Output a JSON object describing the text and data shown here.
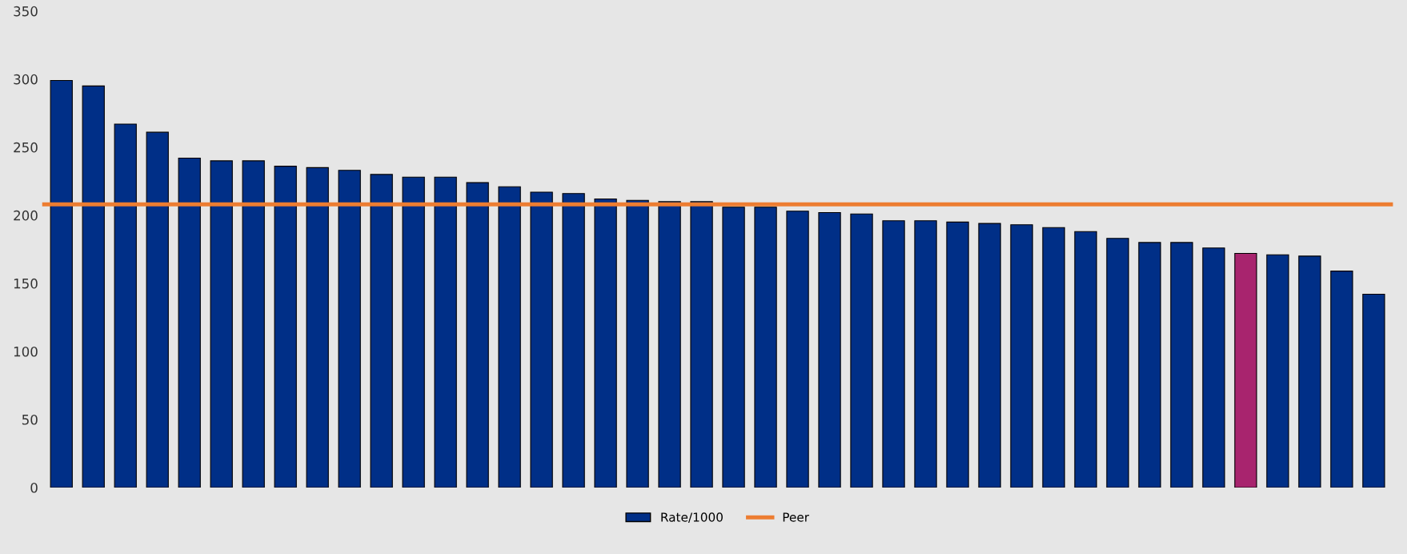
{
  "chart_data": {
    "type": "bar",
    "categories": [
      null,
      null,
      null,
      null,
      null,
      null,
      null,
      null,
      null,
      null,
      null,
      null,
      null,
      null,
      null,
      null,
      null,
      null,
      null,
      null,
      null,
      null,
      null,
      null,
      null,
      null,
      null,
      null,
      null,
      null,
      null,
      null,
      null,
      null,
      null,
      null,
      null,
      null,
      null,
      null,
      null,
      null
    ],
    "series": [
      {
        "name": "Rate/1000",
        "color": "#002f87",
        "colors": [
          "#002f87",
          "#002f87",
          "#002f87",
          "#002f87",
          "#002f87",
          "#002f87",
          "#002f87",
          "#002f87",
          "#002f87",
          "#002f87",
          "#002f87",
          "#002f87",
          "#002f87",
          "#002f87",
          "#002f87",
          "#002f87",
          "#002f87",
          "#002f87",
          "#002f87",
          "#002f87",
          "#002f87",
          "#002f87",
          "#002f87",
          "#002f87",
          "#002f87",
          "#002f87",
          "#002f87",
          "#002f87",
          "#002f87",
          "#002f87",
          "#002f87",
          "#002f87",
          "#002f87",
          "#002f87",
          "#002f87",
          "#002f87",
          "#002f87",
          "#a8246e",
          "#002f87",
          "#002f87",
          "#002f87",
          "#002f87"
        ],
        "values": [
          299,
          295,
          267,
          261,
          242,
          240,
          240,
          236,
          235,
          233,
          230,
          228,
          228,
          224,
          221,
          217,
          216,
          212,
          211,
          210,
          210,
          206,
          206,
          203,
          202,
          201,
          196,
          196,
          195,
          194,
          193,
          191,
          188,
          183,
          180,
          180,
          176,
          172,
          171,
          170,
          159,
          142
        ]
      }
    ],
    "ref_lines": [
      {
        "axis": "y",
        "value": 208,
        "label": "Peer",
        "color": "#ed7d31"
      }
    ],
    "ylim": [
      0,
      350
    ],
    "yticks": [
      0,
      50,
      100,
      150,
      200,
      250,
      300,
      350
    ],
    "grid": false,
    "legend": "bottom"
  }
}
